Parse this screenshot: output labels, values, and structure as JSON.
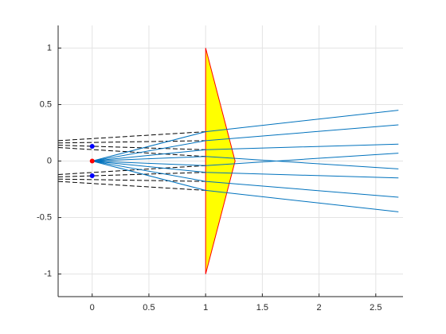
{
  "chart_data": {
    "type": "line",
    "xlim": [
      -0.3,
      2.74
    ],
    "ylim": [
      -1.2,
      1.2
    ],
    "xticks": [
      0,
      0.5,
      1,
      1.5,
      2,
      2.5
    ],
    "yticks": [
      -1,
      -0.5,
      0,
      0.5,
      1
    ],
    "grid": true,
    "series": [
      {
        "type": "fill",
        "color": "#ffff00",
        "edge": "#ff0000",
        "x": [
          1,
          1.26,
          1
        ],
        "values": [
          1,
          0,
          -1
        ]
      },
      {
        "type": "line",
        "color": "#000000",
        "dash": true,
        "x": [
          -0.3,
          1
        ],
        "values": [
          0.18,
          0.26
        ]
      },
      {
        "type": "line",
        "color": "#000000",
        "dash": true,
        "x": [
          -0.3,
          1
        ],
        "values": [
          0.16,
          0.18
        ]
      },
      {
        "type": "line",
        "color": "#000000",
        "dash": true,
        "x": [
          -0.3,
          1
        ],
        "values": [
          0.14,
          0.1
        ]
      },
      {
        "type": "line",
        "color": "#000000",
        "dash": true,
        "x": [
          -0.3,
          1
        ],
        "values": [
          0.12,
          0.04
        ]
      },
      {
        "type": "line",
        "color": "#000000",
        "dash": true,
        "x": [
          -0.3,
          1
        ],
        "values": [
          -0.18,
          -0.26
        ]
      },
      {
        "type": "line",
        "color": "#000000",
        "dash": true,
        "x": [
          -0.3,
          1
        ],
        "values": [
          -0.16,
          -0.18
        ]
      },
      {
        "type": "line",
        "color": "#000000",
        "dash": true,
        "x": [
          -0.3,
          1
        ],
        "values": [
          -0.14,
          -0.1
        ]
      },
      {
        "type": "line",
        "color": "#000000",
        "dash": true,
        "x": [
          -0.3,
          1
        ],
        "values": [
          -0.12,
          -0.04
        ]
      },
      {
        "type": "line",
        "color": "#0072bd",
        "x": [
          0,
          1,
          2.7
        ],
        "values": [
          0,
          0.26,
          0.45
        ]
      },
      {
        "type": "line",
        "color": "#0072bd",
        "x": [
          0,
          1,
          2.7
        ],
        "values": [
          0,
          0.18,
          0.32
        ]
      },
      {
        "type": "line",
        "color": "#0072bd",
        "x": [
          0,
          1,
          2.7
        ],
        "values": [
          0,
          0.1,
          0.15
        ]
      },
      {
        "type": "line",
        "color": "#0072bd",
        "x": [
          0,
          1,
          2.7
        ],
        "values": [
          0,
          0.04,
          -0.07
        ]
      },
      {
        "type": "line",
        "color": "#0072bd",
        "x": [
          0,
          1,
          2.7
        ],
        "values": [
          0,
          -0.04,
          0.07
        ]
      },
      {
        "type": "line",
        "color": "#0072bd",
        "x": [
          0,
          1,
          2.7
        ],
        "values": [
          0,
          -0.1,
          -0.15
        ]
      },
      {
        "type": "line",
        "color": "#0072bd",
        "x": [
          0,
          1,
          2.7
        ],
        "values": [
          0,
          -0.18,
          -0.32
        ]
      },
      {
        "type": "line",
        "color": "#0072bd",
        "x": [
          0,
          1,
          2.7
        ],
        "values": [
          0,
          -0.26,
          -0.45
        ]
      },
      {
        "type": "scatter",
        "color": "#0000ff",
        "x": [
          0,
          0
        ],
        "values": [
          0.13,
          -0.13
        ]
      },
      {
        "type": "scatter",
        "color": "#ff0000",
        "x": [
          0
        ],
        "values": [
          0
        ]
      }
    ]
  }
}
